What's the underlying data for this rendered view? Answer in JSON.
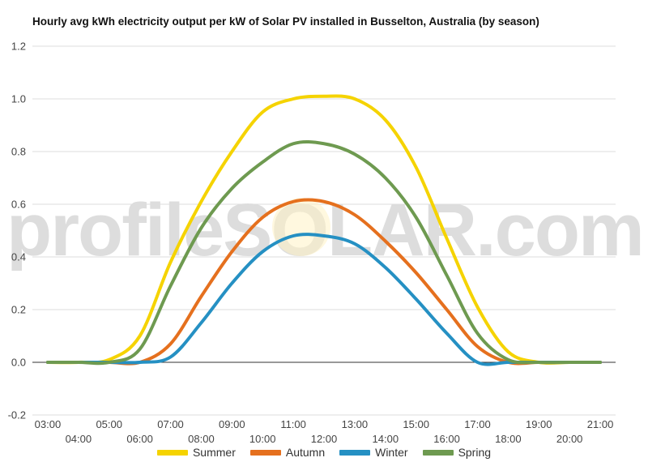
{
  "chart_data": {
    "type": "line",
    "title": "Hourly avg kWh electricity output per kW of Solar PV installed in Busselton, Australia (by season)",
    "watermark": "profileSOLAR.com",
    "xlabel": "",
    "ylabel": "",
    "ylim": [
      -0.2,
      1.2
    ],
    "yticks": [
      "-0.2",
      "0.0",
      "0.2",
      "0.4",
      "0.6",
      "0.8",
      "1.0",
      "1.2"
    ],
    "grid": true,
    "legend_position": "bottom",
    "x": [
      "03:00",
      "04:00",
      "05:00",
      "06:00",
      "07:00",
      "08:00",
      "09:00",
      "10:00",
      "11:00",
      "12:00",
      "13:00",
      "14:00",
      "15:00",
      "16:00",
      "17:00",
      "18:00",
      "19:00",
      "20:00",
      "21:00"
    ],
    "series": [
      {
        "name": "Summer",
        "color": "#f5d300",
        "values": [
          0.0,
          0.0,
          0.01,
          0.1,
          0.38,
          0.61,
          0.8,
          0.95,
          1.0,
          1.01,
          1.0,
          0.92,
          0.74,
          0.47,
          0.21,
          0.04,
          0.0,
          0.0,
          0.0
        ]
      },
      {
        "name": "Autumn",
        "color": "#e5701e",
        "values": [
          0.0,
          0.0,
          0.0,
          0.0,
          0.07,
          0.25,
          0.42,
          0.55,
          0.61,
          0.61,
          0.56,
          0.46,
          0.34,
          0.2,
          0.06,
          0.0,
          0.0,
          0.0,
          0.0
        ]
      },
      {
        "name": "Winter",
        "color": "#2590c3",
        "values": [
          0.0,
          0.0,
          0.0,
          0.0,
          0.02,
          0.15,
          0.3,
          0.42,
          0.48,
          0.48,
          0.45,
          0.36,
          0.24,
          0.11,
          0.0,
          0.0,
          0.0,
          0.0,
          0.0
        ]
      },
      {
        "name": "Spring",
        "color": "#6e9a50",
        "values": [
          0.0,
          0.0,
          0.0,
          0.05,
          0.29,
          0.51,
          0.66,
          0.76,
          0.83,
          0.83,
          0.79,
          0.7,
          0.55,
          0.33,
          0.11,
          0.01,
          0.0,
          0.0,
          0.0
        ]
      }
    ]
  }
}
